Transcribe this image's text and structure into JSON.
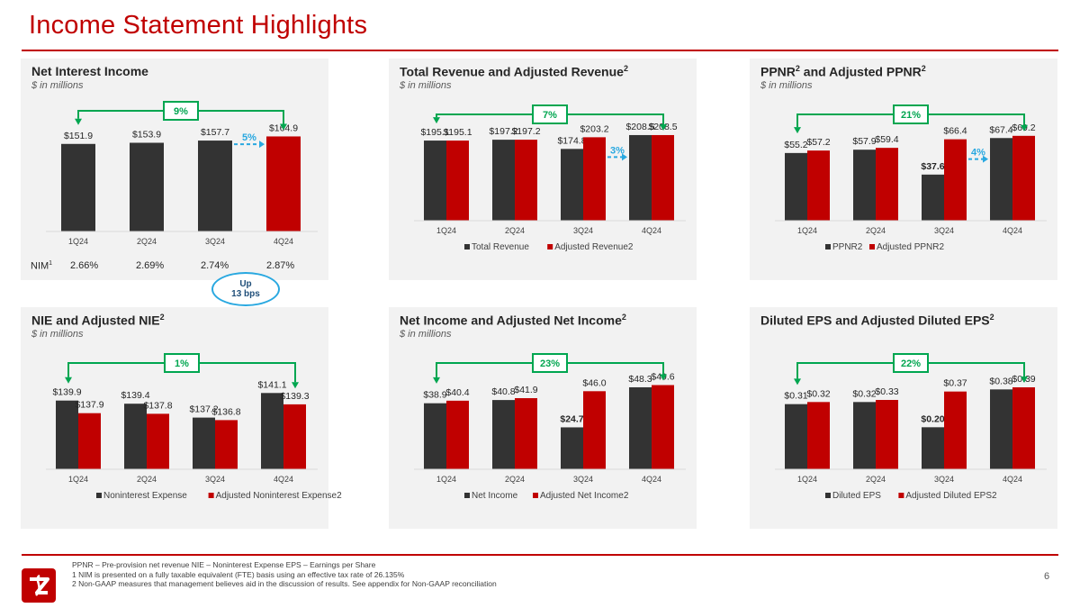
{
  "page_title": "Income Statement Highlights",
  "page_number": "6",
  "colors": {
    "brand_red": "#c00000",
    "dark_bar": "#333333",
    "red_bar": "#c00000",
    "growth_green": "#00a650",
    "dash_blue": "#29a8e0"
  },
  "nim": {
    "label": "NIM",
    "label_sup": "1",
    "values": [
      "2.66%",
      "2.69%",
      "2.74%",
      "2.87%"
    ],
    "callout_line1": "Up",
    "callout_line2": "13 bps"
  },
  "footnotes": {
    "line1": "PPNR – Pre-provision net revenue     NIE – Noninterest Expense     EPS – Earnings per Share",
    "line2": "1   NIM is presented on a fully taxable equivalent (FTE) basis using an effective tax rate of 26.135%",
    "line3": "2   Non-GAAP measures that management believes aid in the discussion of results. See appendix for Non-GAAP reconciliation"
  },
  "panels": [
    {
      "title": "Net Interest Income",
      "title_sup": "",
      "unit": "$ in millions"
    },
    {
      "title": "Total Revenue and Adjusted Revenue",
      "title_sup": "2",
      "unit": "$ in millions"
    },
    {
      "title": "PPNR",
      "title_mid": " and Adjusted PPNR",
      "title_sup": "2",
      "unit": "$ in millions"
    },
    {
      "title": "NIE and Adjusted NIE",
      "title_sup": "2",
      "unit": "$ in millions"
    },
    {
      "title": "Net Income and Adjusted Net Income",
      "title_sup": "2",
      "unit": "$ in millions"
    },
    {
      "title": "Diluted EPS and Adjusted Diluted EPS",
      "title_sup": "2",
      "unit": ""
    }
  ],
  "chart_data": [
    {
      "type": "bar",
      "categories": [
        "1Q24",
        "2Q24",
        "3Q24",
        "4Q24"
      ],
      "series": [
        {
          "values": [
            151.9,
            153.9,
            157.7,
            164.9
          ]
        }
      ],
      "labels": [
        "$151.9",
        "$153.9",
        "$157.7",
        "$164.9"
      ],
      "highlight_last": true,
      "ylim": [
        0,
        175
      ],
      "growth_label": "9%",
      "qoq_label": "5%",
      "qoq_from": 2
    },
    {
      "type": "bar",
      "categories": [
        "1Q24",
        "2Q24",
        "3Q24",
        "4Q24"
      ],
      "series": [
        {
          "name": "Total Revenue",
          "values": [
            195.1,
            197.2,
            174.8,
            208.5
          ],
          "labels": [
            "$195.1",
            "$197.2",
            "$174.8",
            "$208.5"
          ]
        },
        {
          "name": "Adjusted Revenue2",
          "values": [
            195.1,
            197.2,
            203.2,
            208.5
          ],
          "labels": [
            "$195.1",
            "$197.2",
            "$203.2",
            "$208.5"
          ]
        }
      ],
      "ylim": [
        0,
        215
      ],
      "growth_label": "7%",
      "qoq_label": "3%",
      "qoq_from": 2
    },
    {
      "type": "bar",
      "categories": [
        "1Q24",
        "2Q24",
        "3Q24",
        "4Q24"
      ],
      "series": [
        {
          "name": "PPNR2",
          "values": [
            55.2,
            57.9,
            37.6,
            67.4
          ],
          "labels": [
            "$55.2",
            "$57.9",
            "$37.6",
            "$67.4"
          ]
        },
        {
          "name": "Adjusted PPNR2",
          "values": [
            57.2,
            59.4,
            66.4,
            69.2
          ],
          "labels": [
            "$57.2",
            "$59.4",
            "$66.4",
            "$69.2"
          ]
        }
      ],
      "ylim": [
        0,
        72
      ],
      "growth_label": "21%",
      "qoq_label": "4%",
      "qoq_from": 2
    },
    {
      "type": "bar",
      "categories": [
        "1Q24",
        "2Q24",
        "3Q24",
        "4Q24"
      ],
      "series": [
        {
          "name": "Noninterest Expense",
          "values": [
            139.9,
            139.4,
            137.2,
            141.1
          ],
          "labels": [
            "$139.9",
            "$139.4",
            "$137.2",
            "$141.1"
          ]
        },
        {
          "name": "Adjusted Noninterest Expense2",
          "values": [
            137.9,
            137.8,
            136.8,
            139.3
          ],
          "labels": [
            "$137.9",
            "$137.8",
            "$136.8",
            "$139.3"
          ]
        }
      ],
      "ylim": [
        129,
        143
      ],
      "growth_label": "1%"
    },
    {
      "type": "bar",
      "categories": [
        "1Q24",
        "2Q24",
        "3Q24",
        "4Q24"
      ],
      "series": [
        {
          "name": "Net Income",
          "values": [
            38.9,
            40.8,
            24.7,
            48.3
          ],
          "labels": [
            "$38.9",
            "$40.8",
            "$24.7",
            "$48.3"
          ]
        },
        {
          "name": "Adjusted Net Income2",
          "values": [
            40.4,
            41.9,
            46.0,
            49.6
          ],
          "labels": [
            "$40.4",
            "$41.9",
            "$46.0",
            "$49.6"
          ]
        }
      ],
      "ylim": [
        0,
        52
      ],
      "growth_label": "23%"
    },
    {
      "type": "bar",
      "categories": [
        "1Q24",
        "2Q24",
        "3Q24",
        "4Q24"
      ],
      "series": [
        {
          "name": "Diluted EPS",
          "values": [
            0.31,
            0.32,
            0.2,
            0.38
          ],
          "labels": [
            "$0.31",
            "$0.32",
            "$0.20",
            "$0.38"
          ]
        },
        {
          "name": "Adjusted Diluted EPS2",
          "values": [
            0.32,
            0.33,
            0.37,
            0.39
          ],
          "labels": [
            "$0.32",
            "$0.33",
            "$0.37",
            "$0.39"
          ]
        }
      ],
      "ylim": [
        0,
        0.42
      ],
      "growth_label": "22%"
    }
  ]
}
